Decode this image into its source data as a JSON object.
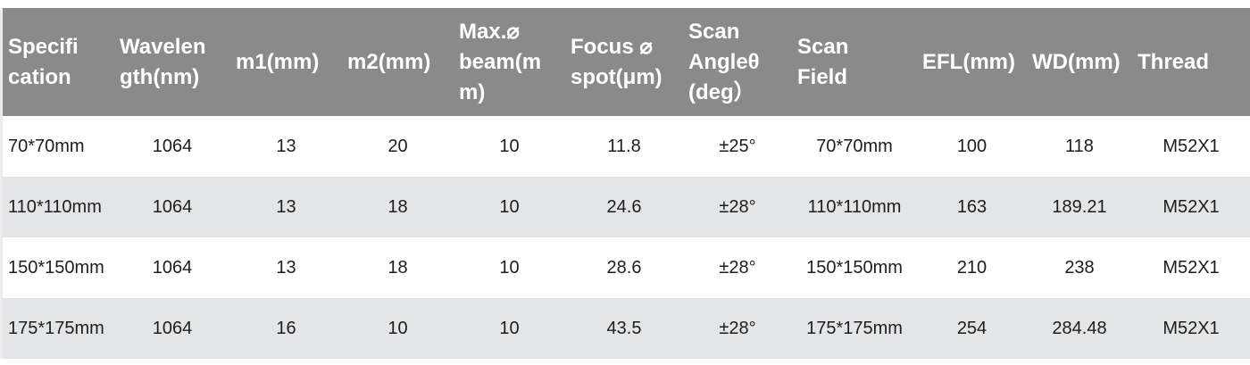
{
  "table": {
    "columns": [
      {
        "label": "Specification"
      },
      {
        "label": "Wavelength(nm)"
      },
      {
        "label": "m1(mm)"
      },
      {
        "label": "m2(mm)"
      },
      {
        "label": "Max.⌀ beam(mm)"
      },
      {
        "label": "Focus ⌀ spot(μm)"
      },
      {
        "label": "Scan Angleθ (deg）"
      },
      {
        "label": "Scan Field"
      },
      {
        "label": "EFL(mm)"
      },
      {
        "label": "WD(mm)"
      },
      {
        "label": "Thread"
      }
    ],
    "rows": [
      [
        "70*70mm",
        "1064",
        "13",
        "20",
        "10",
        "11.8",
        "±25°",
        "70*70mm",
        "100",
        "118",
        "M52X1"
      ],
      [
        "110*110mm",
        "1064",
        "13",
        "18",
        "10",
        "24.6",
        "±28°",
        "110*110mm",
        "163",
        "189.21",
        "M52X1"
      ],
      [
        "150*150mm",
        "1064",
        "13",
        "18",
        "10",
        "28.6",
        "±28°",
        "150*150mm",
        "210",
        "238",
        "M52X1"
      ],
      [
        "175*175mm",
        "1064",
        "16",
        "10",
        "10",
        "43.5",
        "±28°",
        "175*175mm",
        "254",
        "284.48",
        "M52X1"
      ]
    ]
  },
  "colors": {
    "header_bg": "#8a8a8a",
    "header_text": "#ffffff",
    "row_bg": "#ffffff",
    "row_alt_bg": "#e4e5e7",
    "body_text": "#1d1d1d"
  },
  "chart_data": {
    "type": "table",
    "title": "F-theta scan lens specification table",
    "columns": [
      "Specification",
      "Wavelength(nm)",
      "m1(mm)",
      "m2(mm)",
      "Max.⌀ beam(mm)",
      "Focus ⌀ spot(μm)",
      "Scan Angleθ (deg）",
      "Scan Field",
      "EFL(mm)",
      "WD(mm)",
      "Thread"
    ],
    "rows": [
      [
        "70*70mm",
        "1064",
        "13",
        "20",
        "10",
        "11.8",
        "±25°",
        "70*70mm",
        "100",
        "118",
        "M52X1"
      ],
      [
        "110*110mm",
        "1064",
        "13",
        "18",
        "10",
        "24.6",
        "±28°",
        "110*110mm",
        "163",
        "189.21",
        "M52X1"
      ],
      [
        "150*150mm",
        "1064",
        "13",
        "18",
        "10",
        "28.6",
        "±28°",
        "150*150mm",
        "210",
        "238",
        "M52X1"
      ],
      [
        "175*175mm",
        "1064",
        "16",
        "10",
        "10",
        "43.5",
        "±28°",
        "175*175mm",
        "254",
        "284.48",
        "M52X1"
      ]
    ]
  }
}
